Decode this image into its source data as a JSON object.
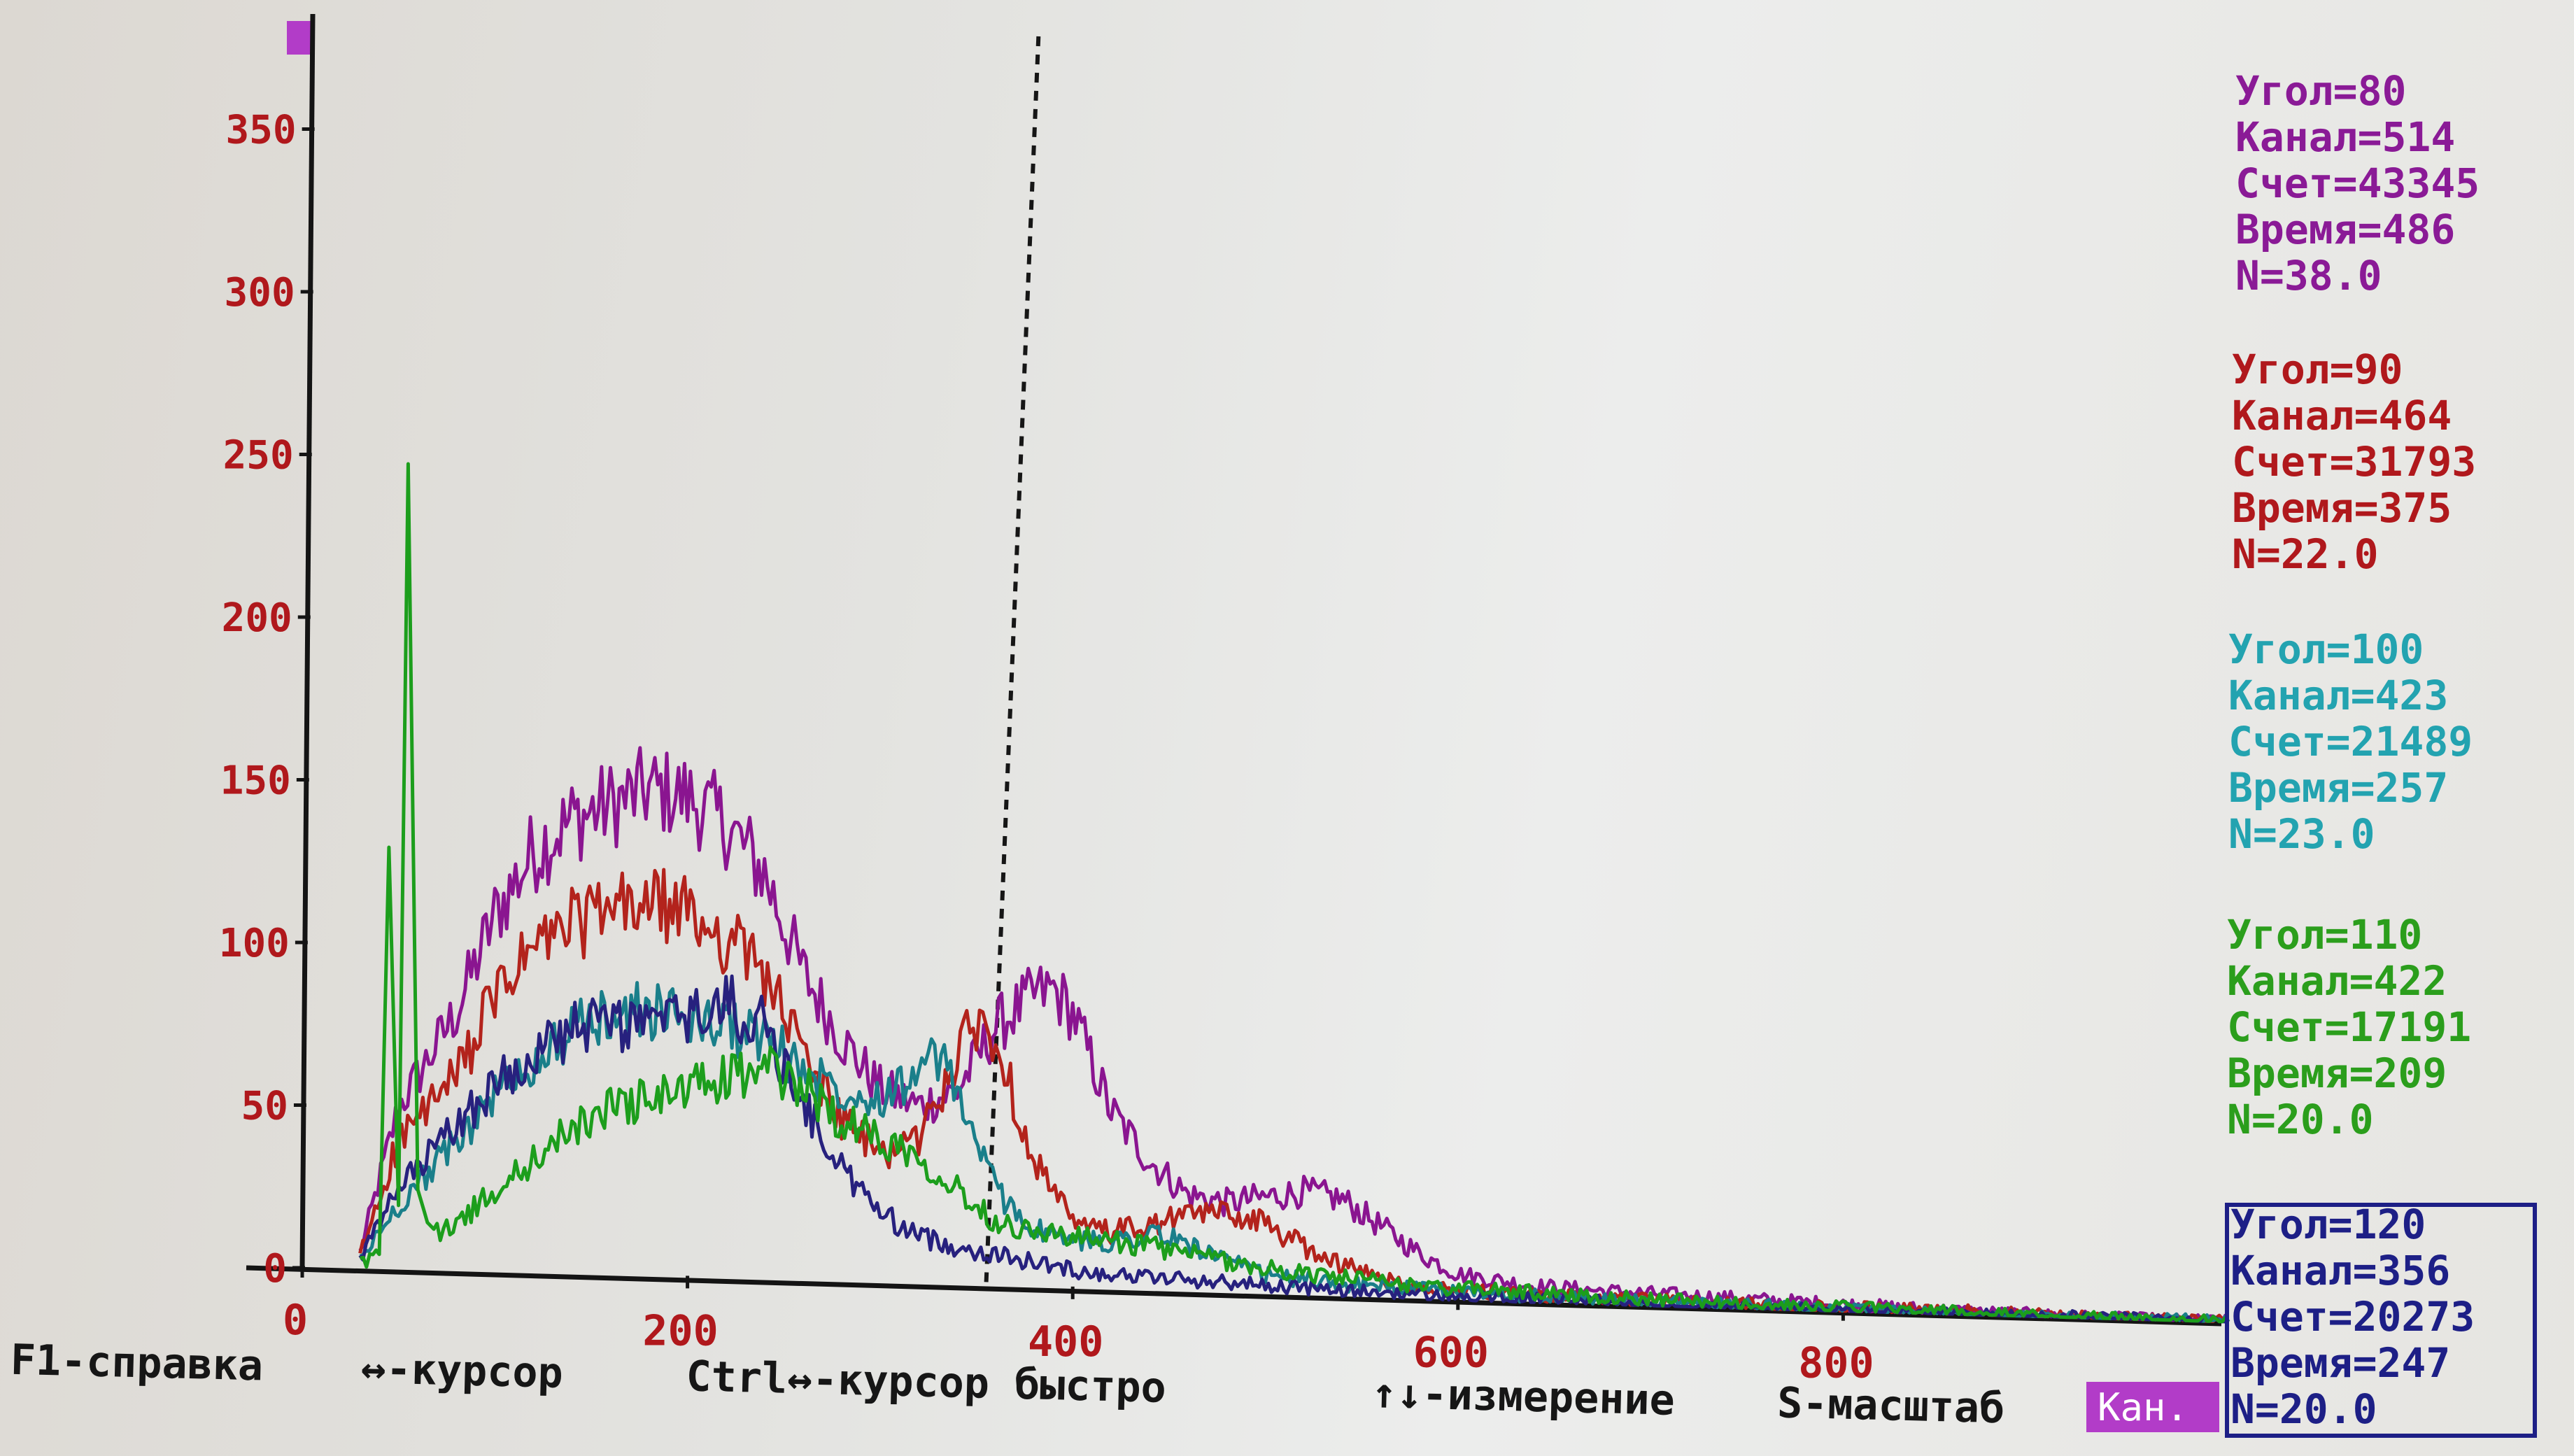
{
  "chart_data": {
    "type": "line",
    "x_ticks": [
      "0",
      "200",
      "400",
      "600",
      "800"
    ],
    "y_ticks": [
      "0",
      "50",
      "100",
      "150",
      "200",
      "250",
      "300",
      "350"
    ],
    "xlim": [
      0,
      1000
    ],
    "ylim": [
      0,
      370
    ],
    "grid": false,
    "cursor_x": 355,
    "series": [
      {
        "color": "#8a1590",
        "x": [
          30,
          50,
          80,
          100,
          120,
          140,
          160,
          180,
          200,
          220,
          240,
          260,
          280,
          300,
          320,
          340,
          360,
          380,
          390,
          400,
          420,
          440,
          460,
          480,
          500,
          520,
          540,
          560,
          580,
          600,
          640,
          680,
          740,
          800,
          860,
          940,
          1000
        ],
        "y": [
          5,
          50,
          80,
          110,
          130,
          140,
          145,
          150,
          148,
          140,
          125,
          95,
          75,
          60,
          55,
          60,
          80,
          90,
          92,
          85,
          55,
          40,
          30,
          28,
          30,
          32,
          30,
          22,
          14,
          8,
          5,
          4,
          3,
          2,
          1,
          0,
          0
        ]
      },
      {
        "color": "#b3231c",
        "x": [
          30,
          50,
          80,
          100,
          120,
          140,
          160,
          180,
          200,
          220,
          240,
          260,
          280,
          300,
          320,
          340,
          350,
          360,
          380,
          400,
          420,
          440,
          460,
          480,
          500,
          520,
          540,
          560,
          580,
          600,
          640,
          680,
          740,
          800,
          860,
          940,
          1000
        ],
        "y": [
          4,
          40,
          60,
          85,
          100,
          108,
          112,
          115,
          112,
          105,
          95,
          70,
          50,
          40,
          45,
          70,
          82,
          75,
          40,
          20,
          18,
          20,
          24,
          25,
          22,
          15,
          10,
          6,
          4,
          3,
          2,
          2,
          1,
          1,
          1,
          0,
          0
        ]
      },
      {
        "color": "#1a7f8a",
        "x": [
          30,
          50,
          80,
          100,
          120,
          140,
          160,
          180,
          200,
          220,
          240,
          260,
          280,
          300,
          320,
          330,
          340,
          360,
          380,
          400,
          420,
          440,
          460,
          480,
          500,
          540,
          580,
          640,
          700,
          760,
          820,
          900,
          1000
        ],
        "y": [
          3,
          20,
          40,
          55,
          65,
          75,
          80,
          82,
          80,
          78,
          75,
          65,
          60,
          58,
          65,
          70,
          60,
          30,
          18,
          15,
          15,
          18,
          15,
          10,
          6,
          4,
          3,
          2,
          1,
          1,
          0,
          0,
          0
        ]
      },
      {
        "color": "#27217e",
        "x": [
          30,
          50,
          80,
          100,
          120,
          140,
          160,
          180,
          200,
          220,
          240,
          260,
          280,
          300,
          320,
          340,
          360,
          380,
          400,
          420,
          460,
          500,
          540,
          600,
          660,
          740,
          820,
          900,
          1000
        ],
        "y": [
          3,
          25,
          45,
          58,
          68,
          75,
          78,
          78,
          80,
          85,
          78,
          55,
          35,
          22,
          15,
          12,
          10,
          8,
          6,
          5,
          4,
          3,
          2,
          1,
          1,
          0,
          0,
          0,
          0
        ]
      },
      {
        "color": "#1c9e1c",
        "x": [
          30,
          40,
          45,
          50,
          55,
          60,
          65,
          70,
          80,
          100,
          120,
          140,
          160,
          180,
          200,
          220,
          240,
          260,
          280,
          300,
          320,
          340,
          360,
          380,
          400,
          420,
          440,
          460,
          480,
          500,
          540,
          580,
          640,
          700,
          760,
          820,
          900,
          1000
        ],
        "y": [
          2,
          5,
          130,
          20,
          248,
          25,
          15,
          12,
          15,
          25,
          35,
          45,
          52,
          55,
          58,
          62,
          65,
          60,
          50,
          45,
          40,
          30,
          20,
          18,
          16,
          15,
          14,
          12,
          10,
          8,
          6,
          4,
          3,
          2,
          1,
          1,
          0,
          0
        ]
      }
    ]
  },
  "info_blocks": [
    {
      "color": "#8a1a96",
      "angle": "Угол=80",
      "channel": "Канал=514",
      "count": "Счет=43345",
      "time": "Время=486",
      "n": "N=38.0"
    },
    {
      "color": "#b0181c",
      "angle": "Угол=90",
      "channel": "Канал=464",
      "count": "Счет=31793",
      "time": "Время=375",
      "n": "N=22.0"
    },
    {
      "color": "#23a3b0",
      "angle": "Угол=100",
      "channel": "Канал=423",
      "count": "Счет=21489",
      "time": "Время=257",
      "n": "N=23.0"
    },
    {
      "color": "#2b9e1c",
      "angle": "Угол=110",
      "channel": "Канал=422",
      "count": "Счет=17191",
      "time": "Время=209",
      "n": "N=20.0"
    },
    {
      "color": "#1d1f86",
      "angle": "Угол=120",
      "channel": "Канал=356",
      "count": "Счет=20273",
      "time": "Время=247",
      "n": "N=20.0"
    }
  ],
  "status_bar": {
    "help": "F1-справка",
    "cursor": "↔-курсор",
    "cursor_fast": "Ctrl↔-курсор быстро",
    "measure": "↑↓-измерение",
    "scale": "S-масштаб"
  },
  "channel_badge": "Кан.",
  "accent_colors": {
    "axis": "#141414",
    "ticks": "#b0181c",
    "badge": "#b23cc8",
    "active_box": "#1d1f86"
  }
}
